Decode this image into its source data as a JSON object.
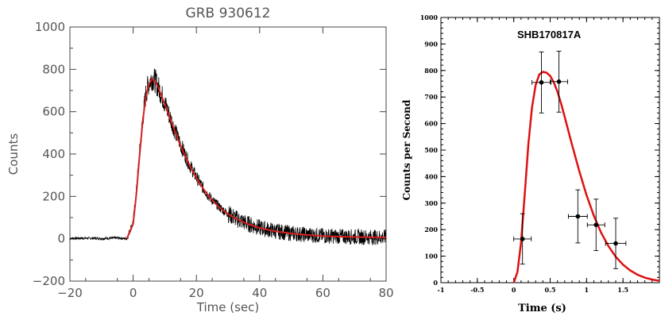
{
  "chart_data": [
    {
      "type": "line",
      "title": "GRB 930612",
      "xlabel": "Time (sec)",
      "ylabel": "Counts",
      "xlim": [
        -20,
        80
      ],
      "ylim": [
        -200,
        1000
      ],
      "x_ticks": [
        "−20",
        "0",
        "20",
        "40",
        "60",
        "80"
      ],
      "y_ticks": [
        "−200",
        "0",
        "200",
        "400",
        "600",
        "800",
        "1000"
      ],
      "grid": false,
      "series": [
        {
          "role": "data",
          "color": "#000000",
          "x": [
            -20,
            -15,
            -10,
            -5,
            -2,
            0,
            1,
            2,
            3,
            4,
            5,
            6,
            7,
            8,
            9,
            10,
            12,
            14,
            16,
            18,
            20,
            22,
            24,
            26,
            28,
            30,
            33,
            36,
            40,
            45,
            50,
            55,
            60,
            65,
            70,
            75,
            80
          ],
          "y": [
            2,
            3,
            1,
            4,
            0,
            80,
            220,
            400,
            560,
            680,
            740,
            760,
            745,
            715,
            680,
            640,
            560,
            480,
            410,
            345,
            290,
            242,
            200,
            168,
            140,
            118,
            92,
            72,
            52,
            36,
            26,
            19,
            14,
            11,
            9,
            8,
            7
          ]
        },
        {
          "role": "fit",
          "color": "#d42020",
          "x": [
            -2,
            0,
            1,
            2,
            3,
            4,
            5,
            6,
            7,
            8,
            9,
            10,
            12,
            14,
            16,
            18,
            20,
            22,
            24,
            26,
            28,
            30,
            33,
            36,
            40,
            45,
            50,
            55,
            60,
            65,
            70,
            75,
            80
          ],
          "y": [
            0,
            70,
            210,
            390,
            550,
            670,
            730,
            755,
            742,
            712,
            675,
            635,
            555,
            476,
            405,
            342,
            287,
            240,
            199,
            166,
            139,
            117,
            91,
            71,
            51,
            35,
            25,
            18,
            13,
            10,
            8,
            7,
            6
          ]
        }
      ]
    },
    {
      "type": "scatter",
      "title": "SHB170817A",
      "xlabel": "Time (s)",
      "ylabel": "Counts per Second",
      "xlim": [
        -1,
        2
      ],
      "ylim": [
        0,
        1000
      ],
      "x_ticks": [
        "-1",
        "-0.5",
        "0",
        "0.5",
        "1",
        "1.5"
      ],
      "y_ticks": [
        "0",
        "100",
        "200",
        "300",
        "400",
        "500",
        "600",
        "700",
        "800",
        "900",
        "1000"
      ],
      "grid": false,
      "points": [
        {
          "x": 0.12,
          "y": 165,
          "xerr": 0.12,
          "yerr": 95
        },
        {
          "x": 0.38,
          "y": 755,
          "xerr": 0.13,
          "yerr": 115
        },
        {
          "x": 0.62,
          "y": 758,
          "xerr": 0.12,
          "yerr": 115
        },
        {
          "x": 0.88,
          "y": 250,
          "xerr": 0.13,
          "yerr": 100
        },
        {
          "x": 1.13,
          "y": 218,
          "xerr": 0.12,
          "yerr": 97
        },
        {
          "x": 1.4,
          "y": 148,
          "xerr": 0.14,
          "yerr": 95
        }
      ],
      "fit": {
        "color": "#dd1111",
        "x": [
          0.0,
          0.05,
          0.1,
          0.15,
          0.2,
          0.25,
          0.3,
          0.35,
          0.4,
          0.45,
          0.5,
          0.55,
          0.6,
          0.65,
          0.7,
          0.8,
          0.9,
          1.0,
          1.1,
          1.2,
          1.3,
          1.4,
          1.5,
          1.6,
          1.7,
          1.8,
          1.9,
          2.0
        ],
        "y": [
          0,
          40,
          150,
          330,
          520,
          660,
          745,
          785,
          795,
          792,
          780,
          755,
          720,
          675,
          625,
          520,
          420,
          330,
          252,
          188,
          138,
          98,
          68,
          46,
          30,
          19,
          12,
          7
        ]
      }
    }
  ]
}
